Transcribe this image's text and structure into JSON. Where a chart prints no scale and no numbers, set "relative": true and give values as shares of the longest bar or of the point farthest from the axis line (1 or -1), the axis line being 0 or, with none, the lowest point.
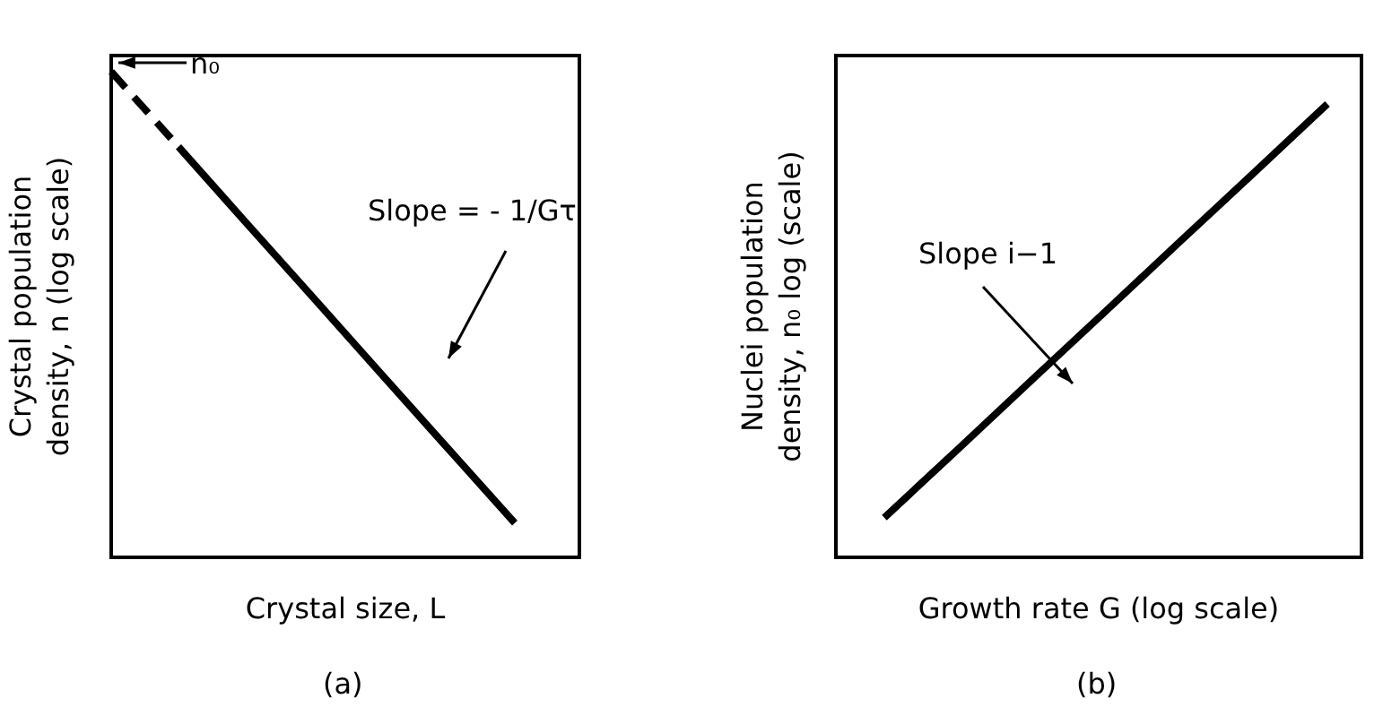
{
  "chart_data": [
    {
      "type": "line",
      "relative": true,
      "categories": [
        null,
        null,
        null,
        null,
        null,
        null,
        null
      ],
      "xlabel": "Crystal size, L",
      "ylabel": "Crystal population\ndensity, n (log scale)",
      "annotations": [
        "n₀",
        "Slope = - 1/Gτ",
        "(a)"
      ],
      "marker": "none",
      "grid": false,
      "legend": false,
      "series": [
        {
          "color": "#000000",
          "line_style": "dashed",
          "values": [
            1,
            0.846,
            null,
            null,
            null,
            null,
            null
          ]
        },
        {
          "color": "#000000",
          "line_style": "solid",
          "values": [
            null,
            0.846,
            0.691,
            0.537,
            0.382,
            0.228,
            0.074
          ]
        }
      ]
    },
    {
      "type": "line",
      "relative": true,
      "categories": [
        null,
        null,
        null,
        null,
        null,
        null,
        null
      ],
      "xlabel": "Growth rate G (log scale)",
      "ylabel": "Nuclei population\ndensity, n₀ log (scale)",
      "annotations": [
        "Slope i−1",
        "(b)"
      ],
      "marker": "none",
      "grid": false,
      "legend": false,
      "series": [
        {
          "color": "#000000",
          "line_style": "solid",
          "values": [
            0.091,
            0.242,
            0.394,
            0.545,
            0.697,
            0.848,
            1
          ]
        }
      ]
    }
  ]
}
